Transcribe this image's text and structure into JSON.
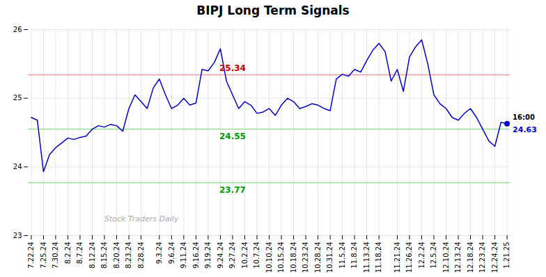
{
  "chart_data": {
    "type": "line",
    "title": "BIPJ Long Term Signals",
    "categories": [
      "7.22.24",
      null,
      "7.25.24",
      null,
      "7.30.24",
      null,
      "8.2.24",
      null,
      "8.7.24",
      null,
      "8.12.24",
      null,
      "8.15.24",
      null,
      "8.20.24",
      null,
      "8.23.24",
      null,
      "8.28.24",
      null,
      null,
      "9.3.24",
      null,
      "9.6.24",
      null,
      "9.11.24",
      null,
      "9.16.24",
      null,
      "9.19.24",
      null,
      "9.24.24",
      null,
      "9.27.24",
      null,
      "10.2.24",
      null,
      "10.7.24",
      null,
      "10.10.24",
      null,
      "10.15.24",
      null,
      "10.18.24",
      null,
      "10.23.24",
      null,
      "10.28.24",
      null,
      "10.31.24",
      null,
      "11.5.24",
      null,
      "11.8.24",
      null,
      "11.13.24",
      null,
      "11.18.24",
      null,
      null,
      "11.21.24",
      null,
      "11.26.24",
      null,
      "12.2.24",
      null,
      "12.5.24",
      null,
      "12.10.24",
      null,
      "12.13.24",
      null,
      "12.18.24",
      null,
      "12.23.24",
      null,
      "12.24.24",
      null,
      "1.21.25"
    ],
    "values": [
      24.72,
      24.68,
      23.93,
      24.18,
      24.28,
      24.35,
      24.42,
      24.4,
      24.43,
      24.45,
      24.55,
      24.6,
      24.58,
      24.62,
      24.6,
      24.52,
      24.85,
      25.05,
      24.95,
      24.85,
      25.15,
      25.28,
      25.05,
      24.85,
      24.9,
      25.0,
      24.9,
      24.93,
      25.42,
      25.4,
      25.52,
      25.72,
      25.25,
      25.05,
      24.85,
      24.95,
      24.9,
      24.78,
      24.8,
      24.85,
      24.75,
      24.9,
      25.0,
      24.95,
      24.85,
      24.88,
      24.92,
      24.9,
      24.85,
      24.82,
      25.28,
      25.35,
      25.32,
      25.42,
      25.38,
      25.55,
      25.7,
      25.8,
      25.68,
      25.25,
      25.42,
      25.1,
      25.6,
      25.75,
      25.85,
      25.5,
      25.05,
      24.92,
      24.85,
      24.72,
      24.68,
      24.78,
      24.85,
      24.72,
      24.55,
      24.38,
      24.3,
      24.65,
      24.63
    ],
    "color": "#0000cc",
    "ylim": [
      23.0,
      26.0
    ],
    "yticks": [
      23,
      24,
      25,
      26
    ],
    "grid": true,
    "reference_lines": [
      {
        "value": 25.34,
        "label": "25.34",
        "color": "#ff9999",
        "label_color": "#cc0000"
      },
      {
        "value": 24.55,
        "label": "24.55",
        "color": "#99dd99",
        "label_color": "#009900"
      },
      {
        "value": 23.77,
        "label": "23.77",
        "color": "#99dd99",
        "label_color": "#009900"
      }
    ],
    "last_point": {
      "value": 24.63,
      "label": "16:00",
      "color": "#0000cc"
    },
    "watermark": {
      "text": "Stock Traders Daily",
      "color": "#aaaaaa"
    }
  }
}
